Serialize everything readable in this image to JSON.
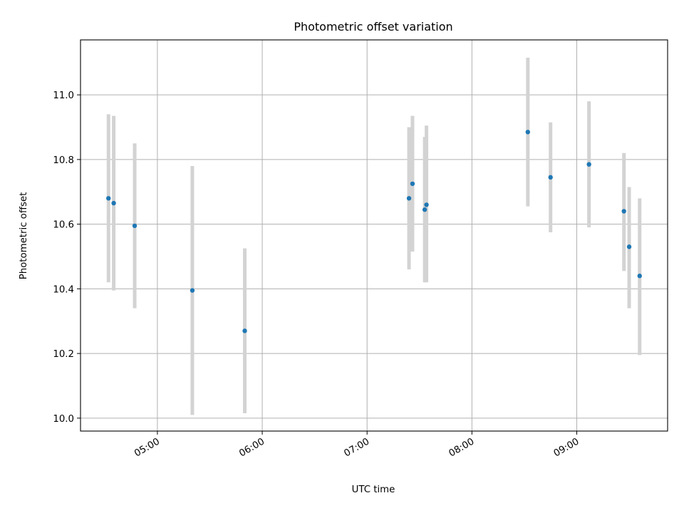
{
  "chart_data": {
    "type": "scatter",
    "title": "Photometric offset variation",
    "xlabel": "UTC time",
    "ylabel": "Photometric offset",
    "x_axis": {
      "kind": "time",
      "lim": [
        "04:16",
        "09:52"
      ],
      "ticks": [
        "05:00",
        "06:00",
        "07:00",
        "08:00",
        "09:00"
      ]
    },
    "y_axis": {
      "lim": [
        9.96,
        11.17
      ],
      "ticks": [
        10.0,
        10.2,
        10.4,
        10.6,
        10.8,
        11.0
      ],
      "tick_labels": [
        "10.0",
        "10.2",
        "10.4",
        "10.6",
        "10.8",
        "11.0"
      ]
    },
    "grid": true,
    "series": [
      {
        "marker_color": "#1f77b4",
        "errorbar_color": "#d3d3d3",
        "points": [
          {
            "x": "04:32",
            "y": 10.68,
            "ylow": 10.42,
            "yhigh": 10.94
          },
          {
            "x": "04:35",
            "y": 10.665,
            "ylow": 10.395,
            "yhigh": 10.935
          },
          {
            "x": "04:47",
            "y": 10.595,
            "ylow": 10.34,
            "yhigh": 10.85
          },
          {
            "x": "05:20",
            "y": 10.395,
            "ylow": 10.01,
            "yhigh": 10.78
          },
          {
            "x": "05:50",
            "y": 10.27,
            "ylow": 10.015,
            "yhigh": 10.525
          },
          {
            "x": "07:24",
            "y": 10.68,
            "ylow": 10.46,
            "yhigh": 10.9
          },
          {
            "x": "07:26",
            "y": 10.725,
            "ylow": 10.515,
            "yhigh": 10.935
          },
          {
            "x": "07:33",
            "y": 10.645,
            "ylow": 10.42,
            "yhigh": 10.87
          },
          {
            "x": "07:34",
            "y": 10.66,
            "ylow": 10.42,
            "yhigh": 10.905
          },
          {
            "x": "08:32",
            "y": 10.885,
            "ylow": 10.655,
            "yhigh": 11.115
          },
          {
            "x": "08:45",
            "y": 10.745,
            "ylow": 10.575,
            "yhigh": 10.915
          },
          {
            "x": "09:07",
            "y": 10.785,
            "ylow": 10.59,
            "yhigh": 10.98
          },
          {
            "x": "09:27",
            "y": 10.64,
            "ylow": 10.455,
            "yhigh": 10.82
          },
          {
            "x": "09:30",
            "y": 10.53,
            "ylow": 10.34,
            "yhigh": 10.715
          },
          {
            "x": "09:36",
            "y": 10.44,
            "ylow": 10.195,
            "yhigh": 10.68
          }
        ]
      }
    ]
  }
}
